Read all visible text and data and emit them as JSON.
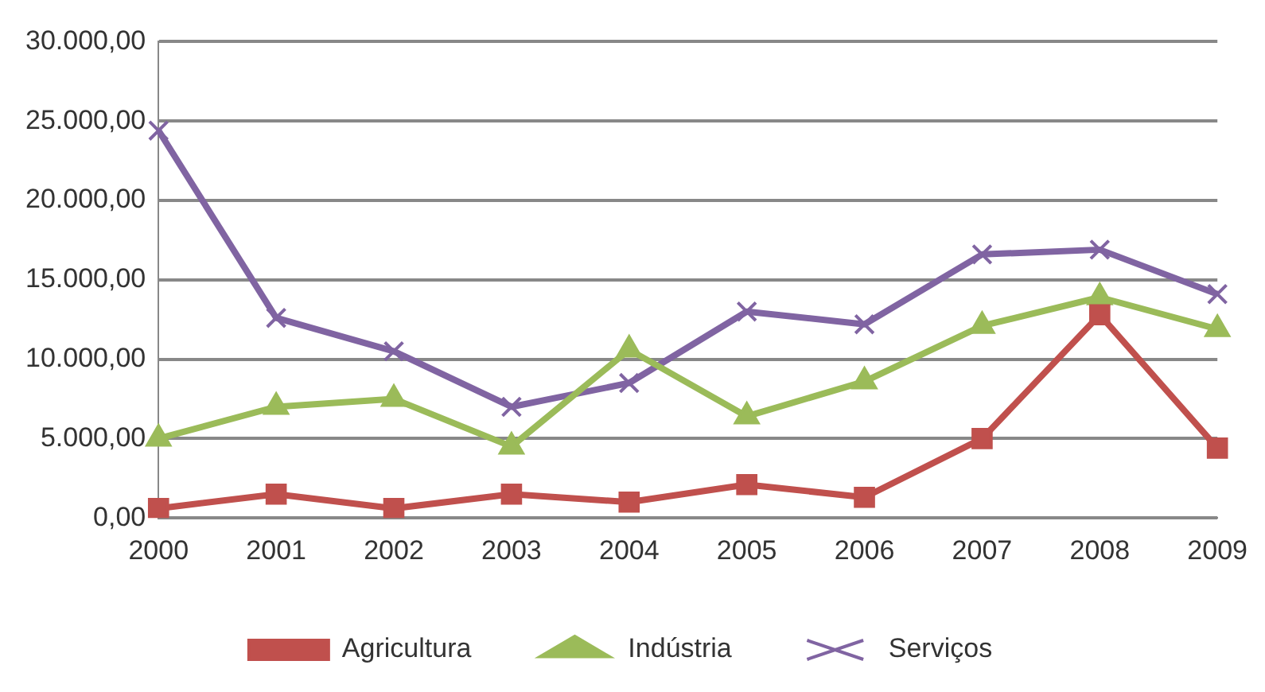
{
  "chart_data": {
    "type": "line",
    "categories": [
      "2000",
      "2001",
      "2002",
      "2003",
      "2004",
      "2005",
      "2006",
      "2007",
      "2008",
      "2009"
    ],
    "series": [
      {
        "name": "Agricultura",
        "color": "#c0504d",
        "marker": "square",
        "values": [
          600,
          1500,
          600,
          1500,
          1000,
          2100,
          1300,
          5000,
          12800,
          4400
        ]
      },
      {
        "name": "Indústria",
        "color": "#9bbb59",
        "marker": "triangle",
        "values": [
          5000,
          7000,
          7500,
          4500,
          10600,
          6400,
          8600,
          12100,
          13900,
          11900
        ]
      },
      {
        "name": "Serviços",
        "color": "#8064a2",
        "marker": "cross",
        "values": [
          24400,
          12600,
          10500,
          7000,
          8500,
          13000,
          12200,
          16600,
          16900,
          14100
        ]
      }
    ],
    "ylim": [
      0,
      30000
    ],
    "yticks": [
      {
        "value": 0,
        "label": "0,00"
      },
      {
        "value": 5000,
        "label": "5.000,00"
      },
      {
        "value": 10000,
        "label": "10.000,00"
      },
      {
        "value": 15000,
        "label": "15.000,00"
      },
      {
        "value": 20000,
        "label": "20.000,00"
      },
      {
        "value": 25000,
        "label": "25.000,00"
      },
      {
        "value": 30000,
        "label": "30.000,00"
      }
    ],
    "grid": "y",
    "legend": "bottom",
    "line_style": "solid"
  }
}
